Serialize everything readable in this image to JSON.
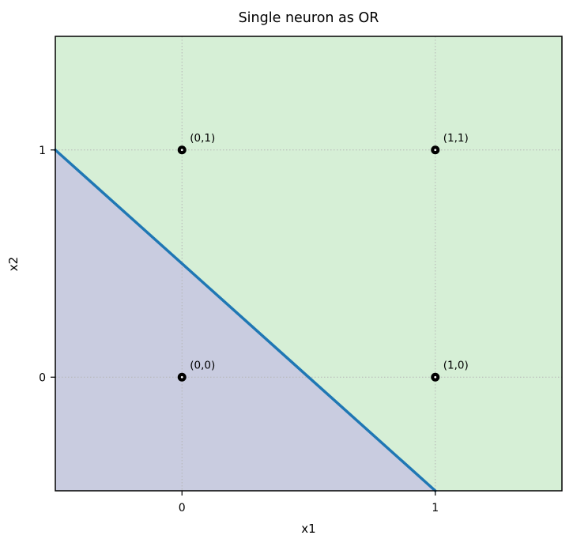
{
  "chart_data": {
    "type": "scatter",
    "title": "Single neuron as OR",
    "xlabel": "x1",
    "ylabel": "x2",
    "xlim": [
      -0.5,
      1.5
    ],
    "ylim": [
      -0.5,
      1.5
    ],
    "grid": true,
    "grid_color": "#b5b5b5",
    "frame_color": "#000000",
    "point_color": "#000000",
    "xticks": [
      {
        "v": 0,
        "label": "0"
      },
      {
        "v": 1,
        "label": "1"
      }
    ],
    "yticks": [
      {
        "v": 0,
        "label": "0"
      },
      {
        "v": 1,
        "label": "1"
      }
    ],
    "points": [
      {
        "x": 0,
        "y": 0,
        "label": "(0,0)"
      },
      {
        "x": 0,
        "y": 1,
        "label": "(0,1)"
      },
      {
        "x": 1,
        "y": 0,
        "label": "(1,0)"
      },
      {
        "x": 1,
        "y": 1,
        "label": "(1,1)"
      }
    ],
    "decision_boundary": {
      "equation": "x1 + x2 = 0.5",
      "from": [
        -0.5,
        1.0
      ],
      "to": [
        1.0,
        -0.5
      ],
      "color": "#1f77b4",
      "width": 3.5
    },
    "regions": [
      {
        "name": "region-output-0",
        "condition": "x1 + x2 < 0.5",
        "color": "#c9cce0",
        "polygon": [
          [
            -0.5,
            1.0
          ],
          [
            -0.5,
            -0.5
          ],
          [
            1.0,
            -0.5
          ]
        ]
      },
      {
        "name": "region-output-1",
        "condition": "x1 + x2 > 0.5",
        "color": "#d6efd6",
        "polygon": [
          [
            -0.5,
            1.0
          ],
          [
            -0.5,
            1.5
          ],
          [
            1.5,
            1.5
          ],
          [
            1.5,
            -0.5
          ],
          [
            1.0,
            -0.5
          ]
        ]
      }
    ]
  }
}
